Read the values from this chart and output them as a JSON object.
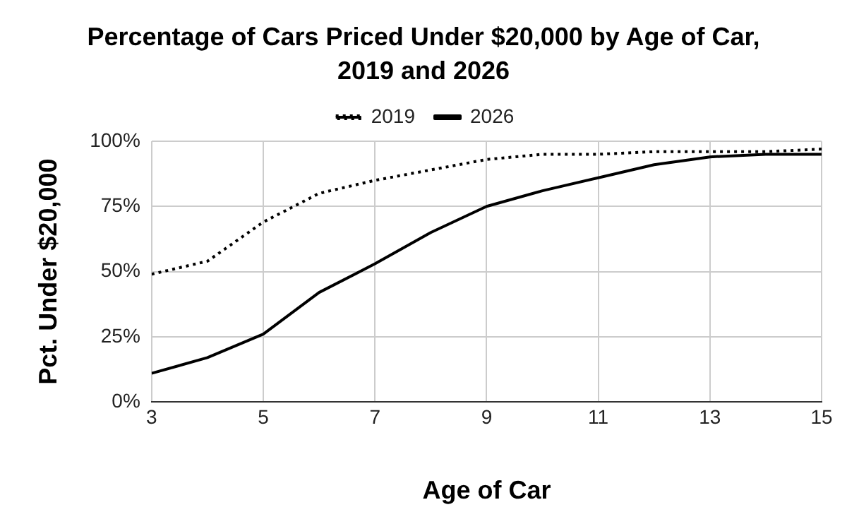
{
  "chart_data": {
    "type": "line",
    "title": "Percentage of Cars Priced Under $20,000 by Age of Car, 2019 and 2026",
    "xlabel": "Age of Car",
    "ylabel": "Pct. Under $20,000",
    "x": [
      3,
      4,
      5,
      6,
      7,
      8,
      9,
      10,
      11,
      12,
      13,
      14,
      15
    ],
    "series": [
      {
        "name": "2019",
        "color": "#000000",
        "line_style": "dotted",
        "values": [
          49,
          54,
          69,
          80,
          85,
          89,
          93,
          95,
          95,
          96,
          96,
          96,
          97
        ]
      },
      {
        "name": "2026",
        "color": "#000000",
        "line_style": "solid",
        "values": [
          11,
          17,
          26,
          42,
          53,
          65,
          75,
          81,
          86,
          91,
          94,
          95,
          95
        ]
      }
    ],
    "xlim": [
      3,
      15
    ],
    "xticks": [
      3,
      5,
      7,
      9,
      11,
      13,
      15
    ],
    "ylim": [
      0,
      100
    ],
    "yticks": [
      {
        "value": 0,
        "label": "0%"
      },
      {
        "value": 25,
        "label": "25%"
      },
      {
        "value": 50,
        "label": "50%"
      },
      {
        "value": 75,
        "label": "75%"
      },
      {
        "value": 100,
        "label": "100%"
      }
    ],
    "grid": true,
    "legend": "top",
    "marker": "none"
  }
}
